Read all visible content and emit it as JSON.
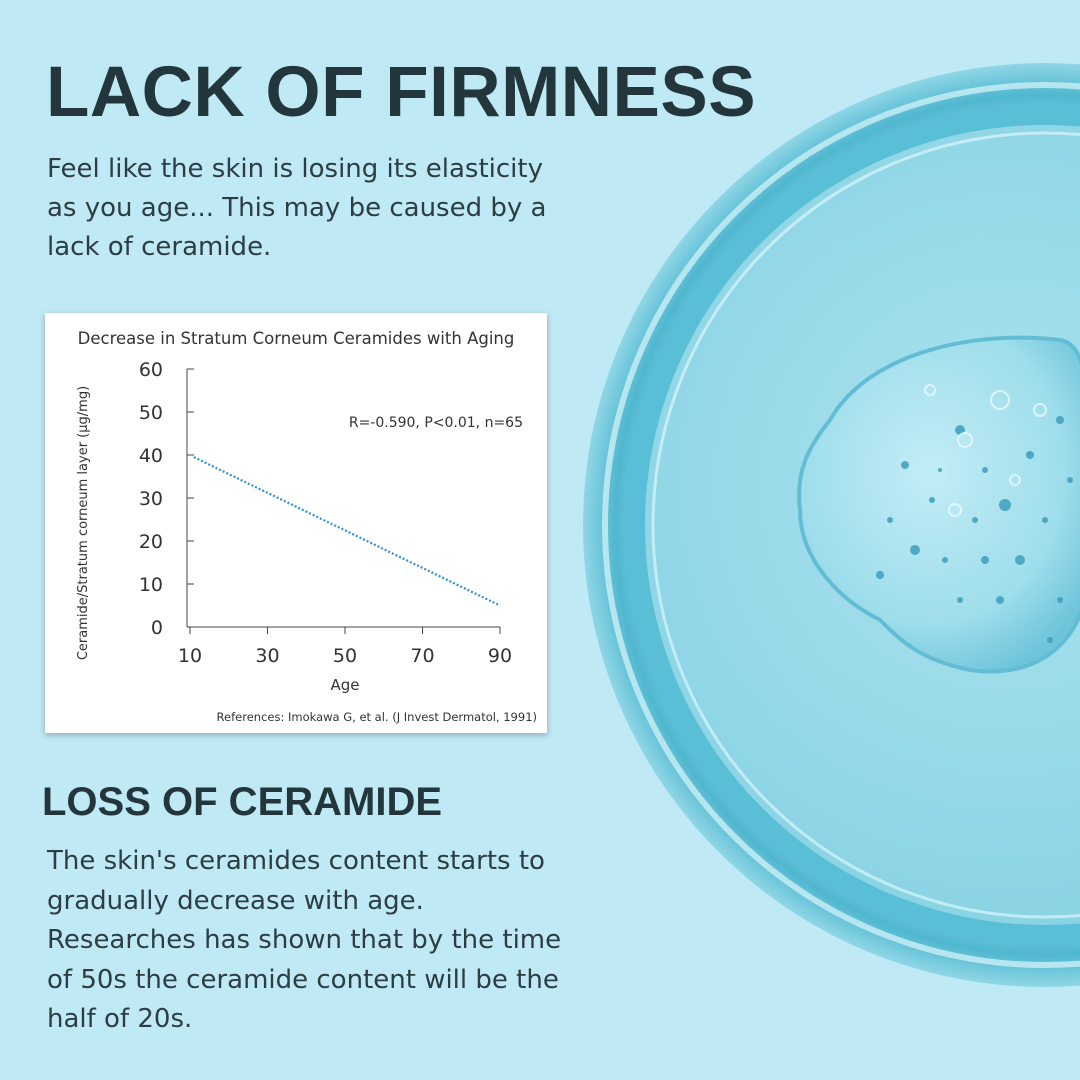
{
  "header": {
    "title": "LACK OF FIRMNESS",
    "intro": "Feel like the skin is losing its elasticity as you age... This may be caused by a lack of ceramide."
  },
  "section": {
    "title": "LOSS OF CERAMIDE",
    "body": "The skin's ceramides content starts to gradually decrease with age. Researches has shown that by the time of 50s the ceramide content will be the half of 20s."
  },
  "colors": {
    "background": "#bfeaf5",
    "text": "#23363b",
    "trend_line": "#2f8fd0"
  },
  "chart_data": {
    "type": "line",
    "title": "Decrease in Stratum Corneum Ceramides with Aging",
    "xlabel": "Age",
    "ylabel": "Ceramide/Stratum corneum layer (µg/mg)",
    "xlim": [
      10,
      90
    ],
    "ylim": [
      0,
      60
    ],
    "x_ticks": [
      10,
      30,
      50,
      70,
      90
    ],
    "y_ticks": [
      0,
      10,
      20,
      30,
      40,
      50,
      60
    ],
    "series": [
      {
        "x": [
          11,
          90
        ],
        "y": [
          39.5,
          5
        ],
        "style": "dotted"
      }
    ],
    "annotation": "R=-0.590, P<0.01, n=65",
    "reference": "References: Imokawa G, et al. (J Invest Dermatol, 1991)",
    "grid": false
  }
}
